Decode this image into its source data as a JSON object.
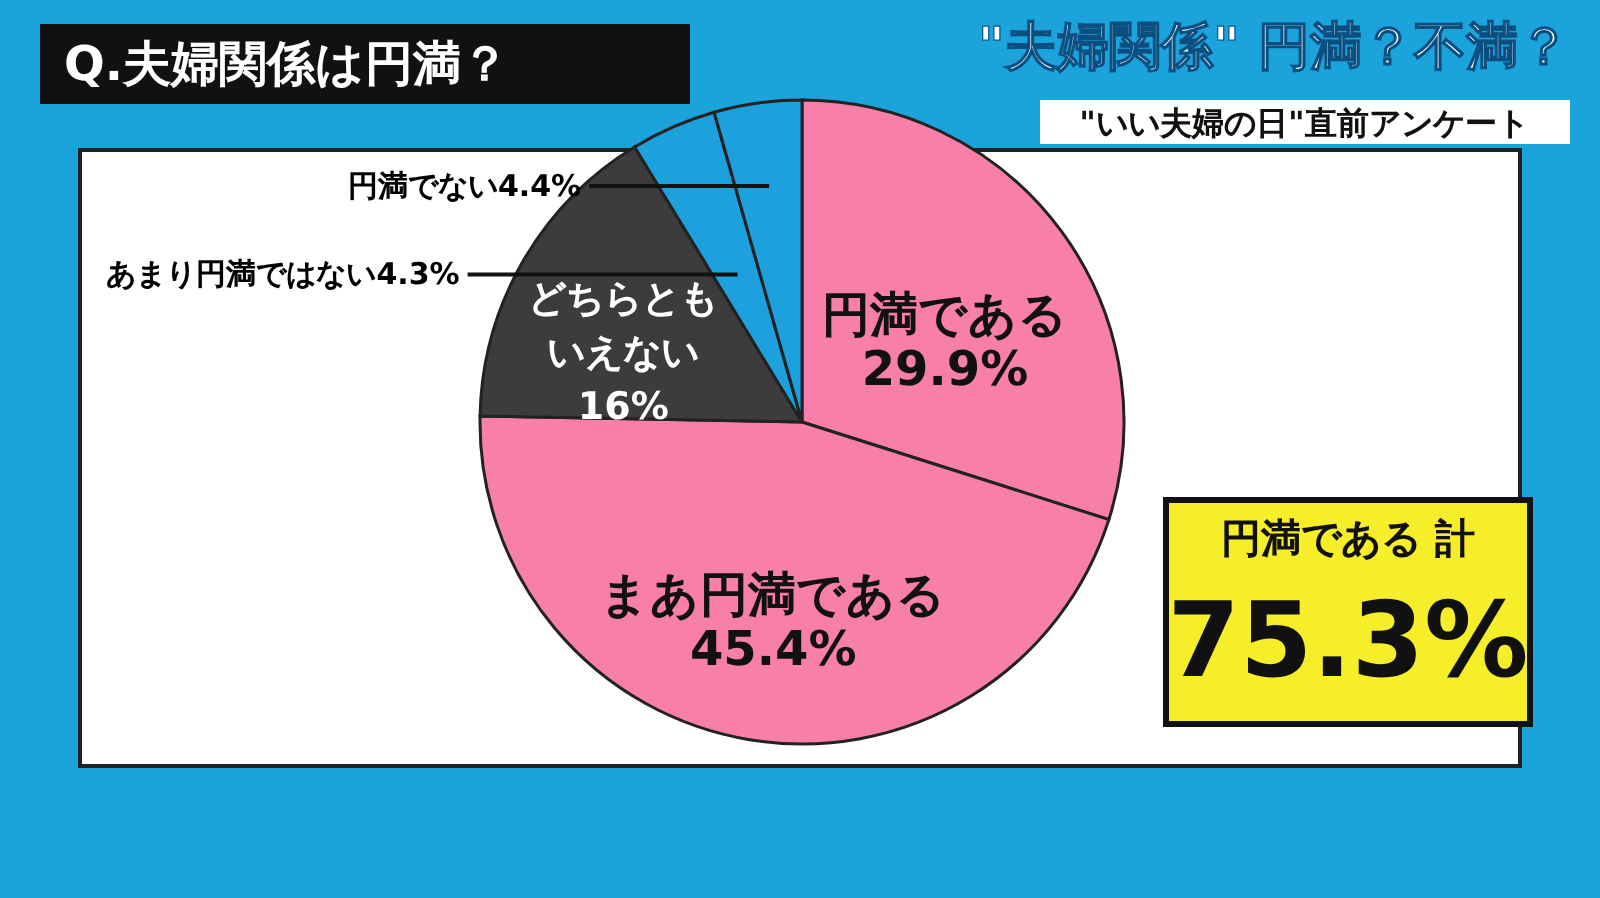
{
  "chart_data": {
    "type": "pie",
    "title": "Q.夫婦関係は円満？",
    "subtitle": "\"夫婦関係\" 円満？不満？",
    "annotations": [
      "\"いい夫婦の日\"直前アンケート",
      "円満である 計 75.3%"
    ],
    "categories": [
      "円満である",
      "まあ円満である",
      "どちらともいえない",
      "あまり円満ではない",
      "円満でない"
    ],
    "values": [
      29.9,
      45.4,
      16,
      4.3,
      4.4
    ],
    "colors": [
      "#f77fa9",
      "#f77fa9",
      "#3c3c3c",
      "#1da1dd",
      "#1da1dd"
    ],
    "value_labels": [
      "29.9%",
      "45.4%",
      "16%",
      "4.3%",
      "4.4%"
    ]
  }
}
